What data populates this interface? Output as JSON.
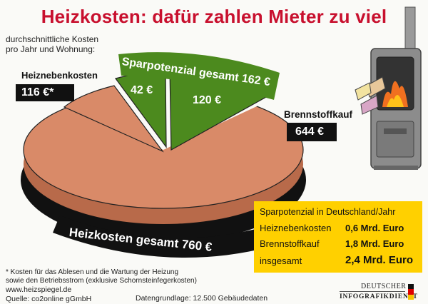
{
  "title": "Heizkosten: dafür zahlen Mieter zu viel",
  "subtitle_line1": "durchschnittliche Kosten",
  "subtitle_line2": "pro Jahr und Wohnung:",
  "sparpotenzial_label": "Sparpotenzial gesamt 162 €",
  "heiznebenkosten_title": "Heiznebenkosten",
  "heiznebenkosten_value": "116 €*",
  "brennstoffkauf_title": "Brennstoffkauf",
  "brennstoffkauf_value": "644 €",
  "slice_42": "42 €",
  "slice_120": "120 €",
  "heizkosten_total": "Heizkosten gesamt 760 €",
  "yellow_box": {
    "title": "Sparpotenzial in Deutschland/Jahr",
    "rows": [
      {
        "label": "Heiznebenkosten",
        "value": "0,6 Mrd. Euro"
      },
      {
        "label": "Brennstoffkauf",
        "value": "1,8 Mrd. Euro"
      },
      {
        "label": "insgesamt",
        "value": "2,4 Mrd. Euro"
      }
    ]
  },
  "footnote_line1": "* Kosten für das Ablesen und die Wartung der Heizung",
  "footnote_line2": "sowie den Betriebsstrom (exklusive Schornsteinfegerkosten)",
  "source_line1": "www.heizspiegel.de",
  "source_line2": "Quelle: co2online gGmbH",
  "datenbasis": "Datengrundlage: 12.500 Gebäudedaten",
  "logo_line1": "Deutscher",
  "logo_line2": "Infografikdienst",
  "chart_data": {
    "type": "pie",
    "title": "Heizkosten: dafür zahlen Mieter zu viel",
    "total": 760,
    "unit": "€",
    "slices": [
      {
        "label": "Heiznebenkosten",
        "value": 116,
        "savings_part": 42
      },
      {
        "label": "Brennstoffkauf",
        "value": 644,
        "savings_part": 120
      }
    ],
    "savings_total": 162,
    "colors": {
      "base": "#d98a68",
      "savings": "#4c8a1e",
      "rim": "#1a1a1a",
      "title": "#c8102e",
      "box": "#ffd000"
    }
  }
}
